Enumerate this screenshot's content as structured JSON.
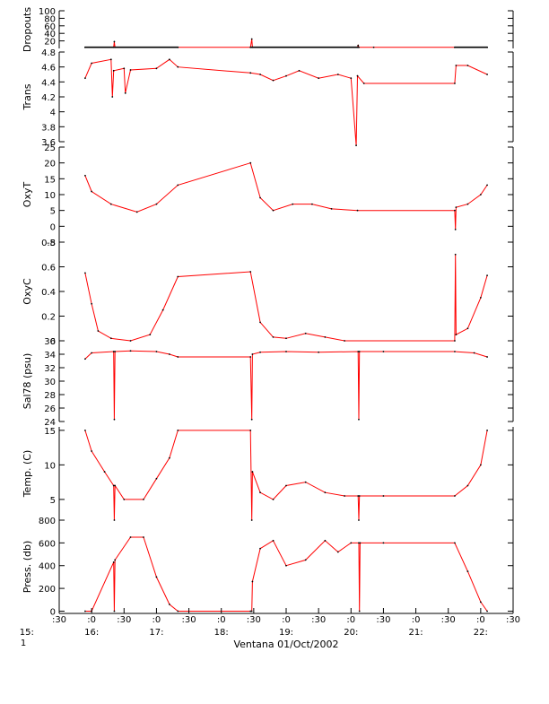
{
  "chart_data": [
    {
      "type": "line",
      "ylabel": "Dropouts",
      "yticks": [
        20,
        40,
        60,
        80,
        100
      ],
      "ylim": [
        0,
        100
      ],
      "series": [
        {
          "color": "#ff0000",
          "x": [
            15.9,
            16.34,
            16.35,
            16.36,
            17.33,
            18.45,
            18.47,
            18.48,
            20.1,
            20.11,
            20.12,
            20.35,
            21.6,
            22.1
          ],
          "y": [
            3,
            3,
            18,
            3,
            3,
            3,
            25,
            3,
            3,
            8,
            3,
            3,
            3,
            3
          ]
        },
        {
          "color": "#000000",
          "x": [
            15.9,
            17.33
          ],
          "y": [
            3,
            3
          ]
        },
        {
          "color": "#000000",
          "x": [
            18.45,
            20.12
          ],
          "y": [
            3,
            3
          ]
        },
        {
          "color": "#000000",
          "x": [
            21.6,
            22.1
          ],
          "y": [
            3,
            3
          ]
        }
      ]
    },
    {
      "type": "line",
      "ylabel": "Trans",
      "yticks": [
        3.6,
        3.8,
        4.0,
        4.2,
        4.4,
        4.6,
        4.8
      ],
      "ylim": [
        3.6,
        4.8
      ],
      "series": [
        {
          "color": "#ff0000",
          "x": [
            15.9,
            16.0,
            16.3,
            16.32,
            16.34,
            16.5,
            16.52,
            16.6,
            17.0,
            17.2,
            17.33,
            18.45,
            18.6,
            18.8,
            19.0,
            19.2,
            19.5,
            19.8,
            20.0,
            20.08,
            20.1,
            20.2,
            21.6,
            21.62,
            21.8,
            22.1
          ],
          "y": [
            4.45,
            4.65,
            4.7,
            4.2,
            4.55,
            4.58,
            4.25,
            4.56,
            4.58,
            4.7,
            4.6,
            4.52,
            4.5,
            4.42,
            4.48,
            4.55,
            4.45,
            4.5,
            4.45,
            3.55,
            4.48,
            4.38,
            4.38,
            4.62,
            4.62,
            4.5
          ]
        }
      ]
    },
    {
      "type": "line",
      "ylabel": "OxyT",
      "yticks": [
        -5,
        0,
        5,
        10,
        15,
        20,
        25
      ],
      "ylim": [
        -5,
        25
      ],
      "series": [
        {
          "color": "#ff0000",
          "x": [
            15.9,
            16.0,
            16.3,
            16.7,
            17.0,
            17.33,
            18.45,
            18.6,
            18.8,
            19.1,
            19.4,
            19.7,
            20.1,
            21.6,
            21.61,
            21.62,
            21.8,
            22.0,
            22.1
          ],
          "y": [
            16,
            11,
            7,
            4.5,
            7,
            13,
            20,
            9,
            5,
            7,
            7,
            5.5,
            5,
            5,
            -1,
            6,
            7,
            10,
            13
          ]
        }
      ]
    },
    {
      "type": "line",
      "ylabel": "OxyC",
      "yticks": [
        0.0,
        0.2,
        0.4,
        0.6,
        0.8
      ],
      "ylim": [
        0.0,
        0.8
      ],
      "series": [
        {
          "color": "#ff0000",
          "x": [
            15.9,
            16.0,
            16.1,
            16.3,
            16.6,
            16.9,
            17.1,
            17.33,
            18.45,
            18.6,
            18.8,
            19.0,
            19.3,
            19.6,
            19.9,
            21.6,
            21.61,
            21.62,
            21.8,
            22.0,
            22.1
          ],
          "y": [
            0.55,
            0.3,
            0.08,
            0.02,
            0.0,
            0.05,
            0.25,
            0.52,
            0.56,
            0.15,
            0.03,
            0.02,
            0.06,
            0.03,
            0.0,
            0.0,
            0.7,
            0.05,
            0.1,
            0.35,
            0.53
          ]
        }
      ]
    },
    {
      "type": "line",
      "ylabel": "Sal78 (psu)",
      "yticks": [
        24,
        26,
        28,
        30,
        32,
        34,
        36
      ],
      "ylim": [
        24,
        36
      ],
      "series": [
        {
          "color": "#ff0000",
          "x": [
            15.9,
            16.0,
            16.34,
            16.35,
            16.36,
            16.6,
            17.0,
            17.2,
            17.33,
            18.45,
            18.47,
            18.48,
            18.6,
            19.0,
            19.5,
            20.11,
            20.12,
            20.13,
            20.5,
            21.6,
            21.9,
            22.1
          ],
          "y": [
            33.3,
            34.2,
            34.4,
            24.3,
            34.4,
            34.5,
            34.4,
            34.0,
            33.6,
            33.6,
            24.3,
            34.0,
            34.3,
            34.4,
            34.3,
            34.4,
            24.3,
            34.4,
            34.4,
            34.4,
            34.2,
            33.6
          ]
        }
      ]
    },
    {
      "type": "line",
      "ylabel": "Temp. (C)",
      "yticks": [
        5,
        10,
        15
      ],
      "ylim": [
        2,
        15.5
      ],
      "series": [
        {
          "color": "#ff0000",
          "x": [
            15.9,
            16.0,
            16.2,
            16.34,
            16.35,
            16.36,
            16.5,
            16.8,
            17.0,
            17.2,
            17.33,
            18.45,
            18.47,
            18.48,
            18.6,
            18.8,
            19.0,
            19.3,
            19.6,
            19.9,
            20.11,
            20.12,
            20.13,
            20.5,
            21.6,
            21.8,
            22.0,
            22.1
          ],
          "y": [
            15,
            12,
            9,
            7,
            2,
            7,
            5,
            5,
            8,
            11,
            15,
            15,
            2,
            9,
            6,
            5,
            7,
            7.5,
            6,
            5.5,
            5.5,
            2,
            5.5,
            5.5,
            5.5,
            7,
            10,
            15
          ]
        }
      ]
    },
    {
      "type": "line",
      "ylabel": "Press. (db)",
      "yticks": [
        0,
        200,
        400,
        600,
        800
      ],
      "ylim": [
        -20,
        800
      ],
      "series": [
        {
          "color": "#ff0000",
          "x": [
            15.9,
            16.0,
            16.34,
            16.35,
            16.36,
            16.6,
            16.8,
            17.0,
            17.2,
            17.33,
            18.45,
            18.47,
            18.48,
            18.6,
            18.8,
            19.0,
            19.3,
            19.6,
            19.8,
            20.0,
            20.12,
            20.13,
            20.14,
            20.5,
            21.6,
            21.8,
            22.0,
            22.1
          ],
          "y": [
            0,
            0,
            430,
            0,
            450,
            650,
            650,
            300,
            60,
            0,
            0,
            0,
            260,
            550,
            620,
            400,
            450,
            620,
            520,
            600,
            600,
            0,
            600,
            600,
            600,
            350,
            80,
            0
          ]
        }
      ]
    }
  ],
  "xaxis": {
    "xlim": [
      15.5,
      22.5
    ],
    "tick_top": [
      ":30",
      ":0",
      ":30",
      ":0",
      ":30",
      ":0",
      ":30",
      ":0",
      ":30",
      ":0",
      ":30",
      ":0",
      ":30",
      ":0",
      ":30"
    ],
    "hour_labels": [
      "15:",
      "16:",
      "17:",
      "18:",
      "19:",
      "20:",
      "21:",
      "22:"
    ],
    "day_label": "1",
    "xlabel": "Ventana 01/Oct/2002"
  }
}
